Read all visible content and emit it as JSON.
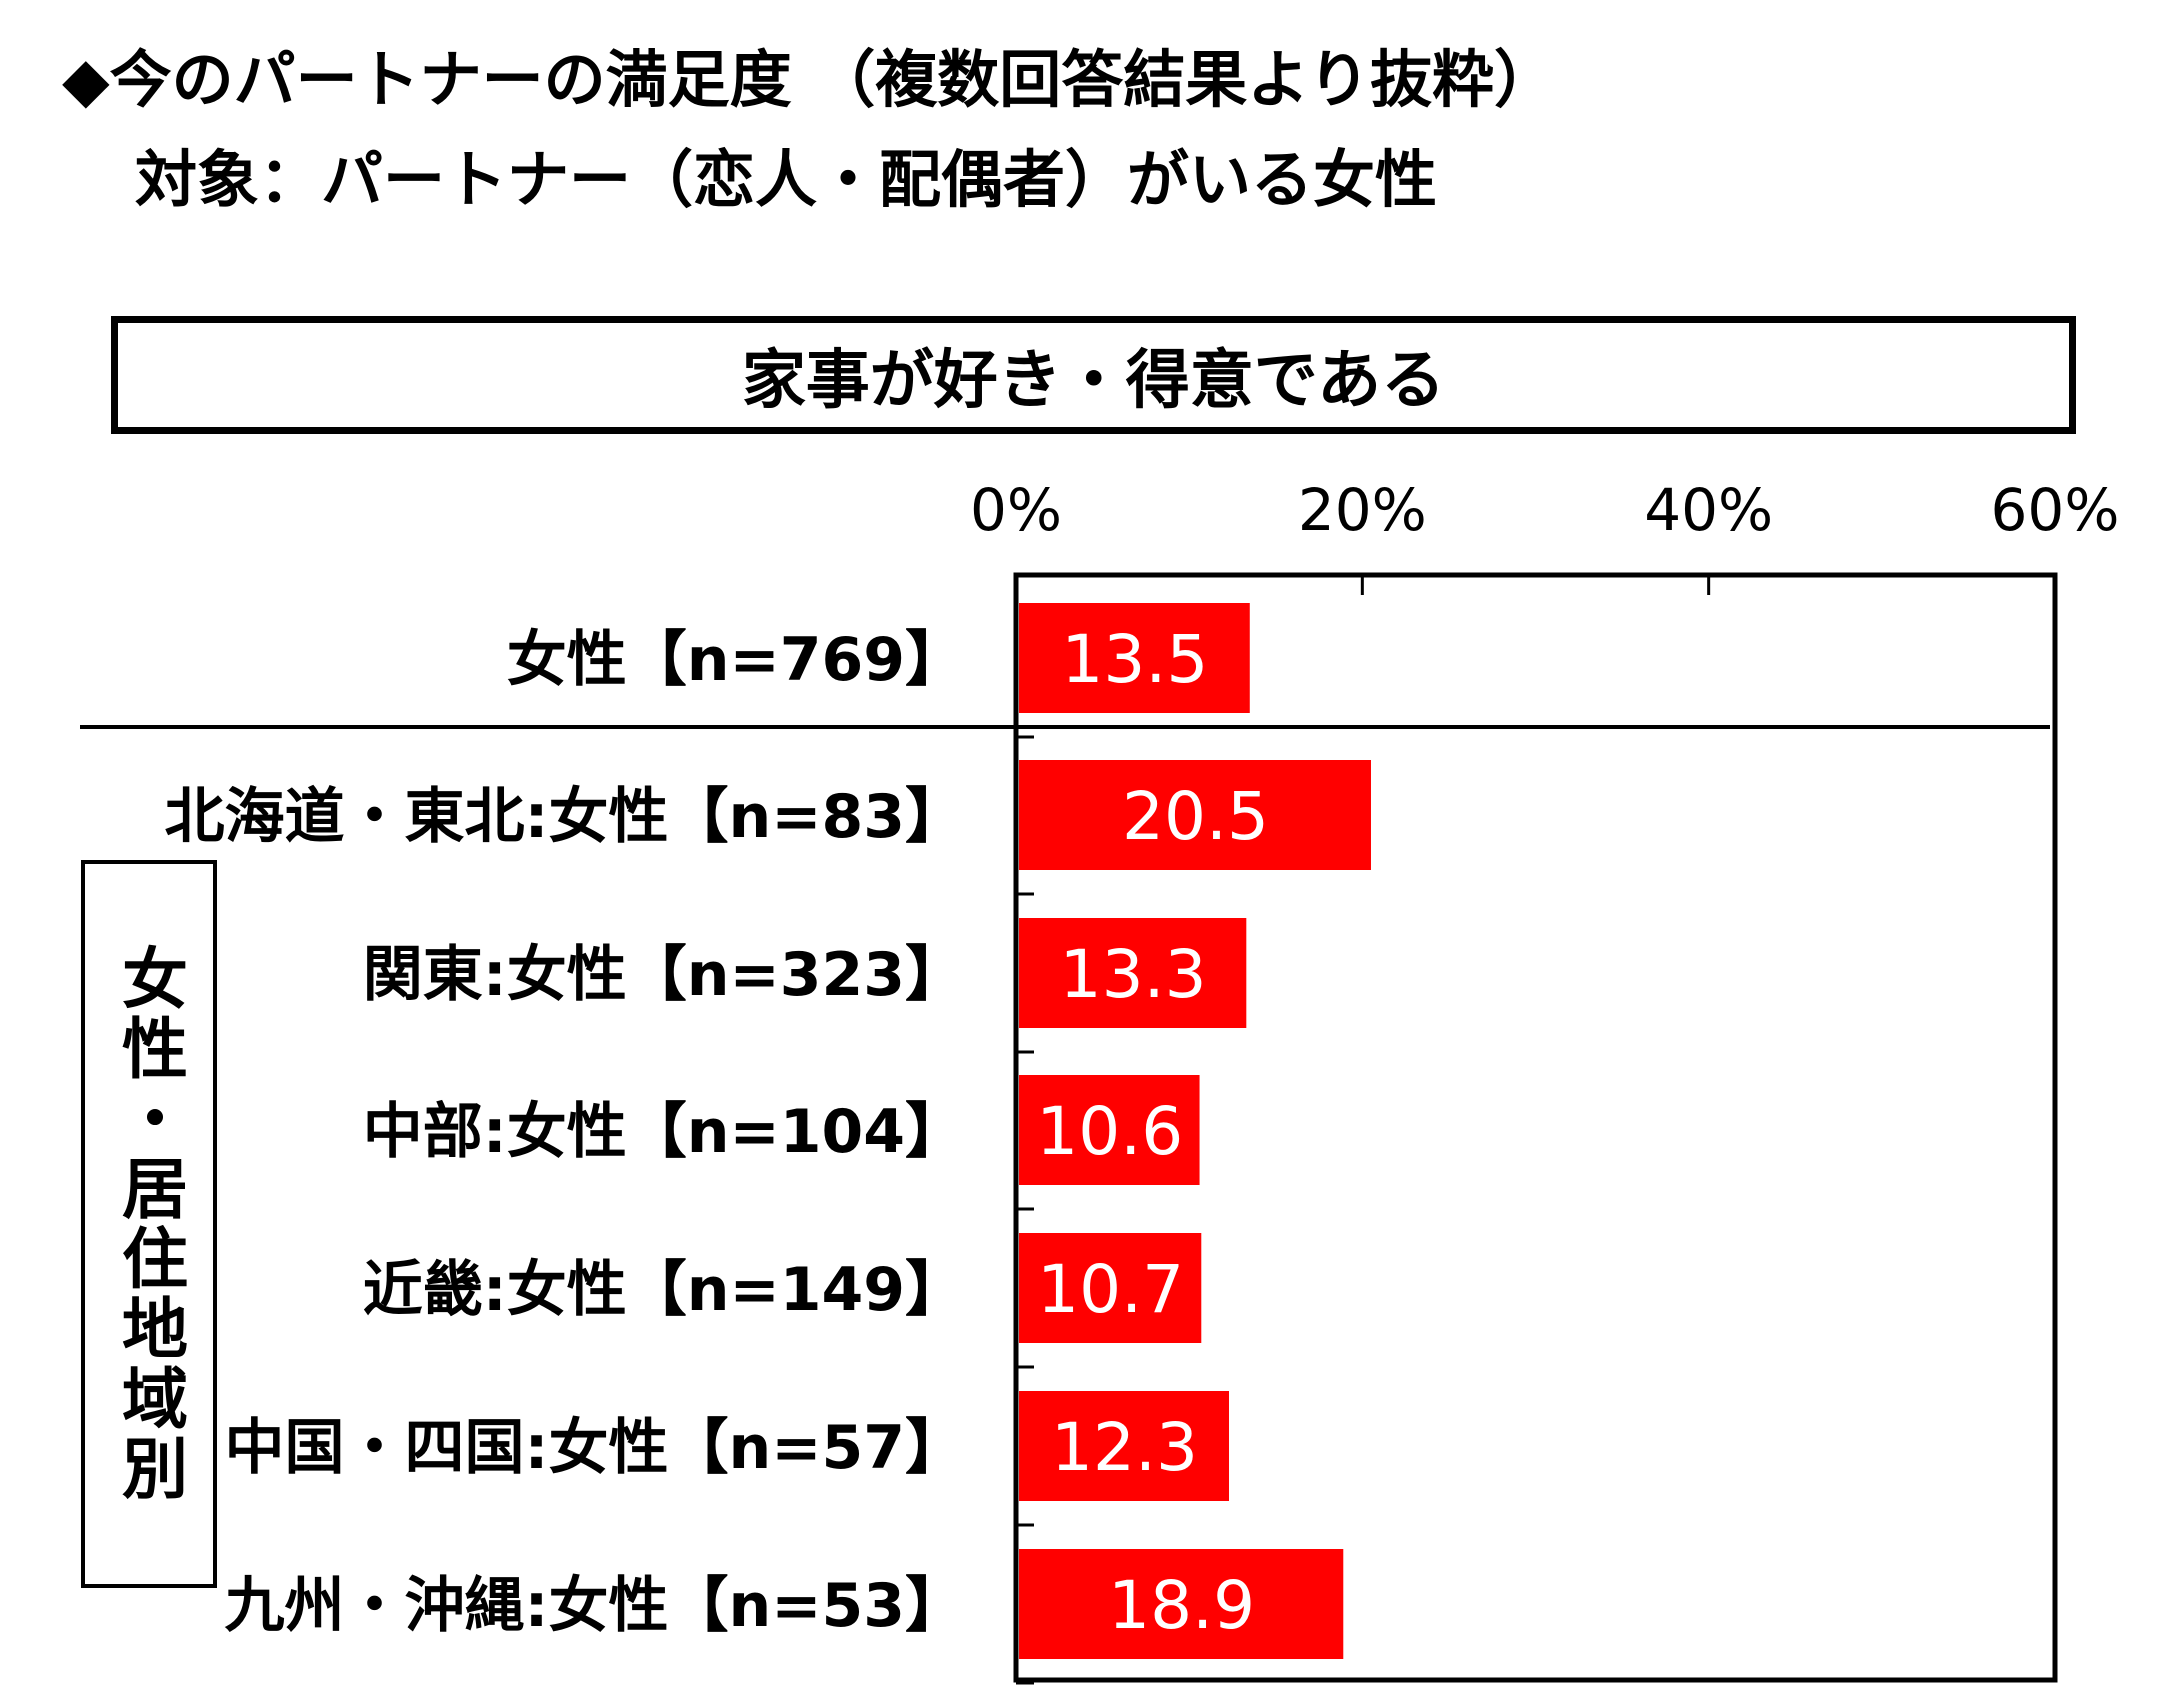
{
  "header": {
    "title": "◆今のパートナーの満足度 （複数回答結果より抜粋）",
    "subtitle": "対象：パートナー（恋人・配偶者）がいる女性"
  },
  "panel_title": "家事が好き・得意である",
  "group_label": "女性・居住地域別",
  "colors": {
    "bar": "#ff0000",
    "axis": "#000000",
    "label_text": "#ffffff"
  },
  "chart_data": {
    "type": "bar",
    "orientation": "horizontal",
    "title": "家事が好き・得意である",
    "categories": [
      "女性【n=769】",
      "北海道・東北:女性【n=83】",
      "関東:女性【n=323】",
      "中部:女性【n=104】",
      "近畿:女性【n=149】",
      "中国・四国:女性【n=57】",
      "九州・沖縄:女性【n=53】"
    ],
    "values": [
      13.5,
      20.5,
      13.3,
      10.6,
      10.7,
      12.3,
      18.9
    ],
    "value_labels": [
      "13.5",
      "20.5",
      "13.3",
      "10.6",
      "10.7",
      "12.3",
      "18.9"
    ],
    "xlim": [
      0,
      60
    ],
    "xticks": [
      0,
      20,
      40,
      60
    ],
    "xtick_labels": [
      "0%",
      "20%",
      "40%",
      "60%"
    ],
    "grid": false,
    "legend": "none"
  }
}
